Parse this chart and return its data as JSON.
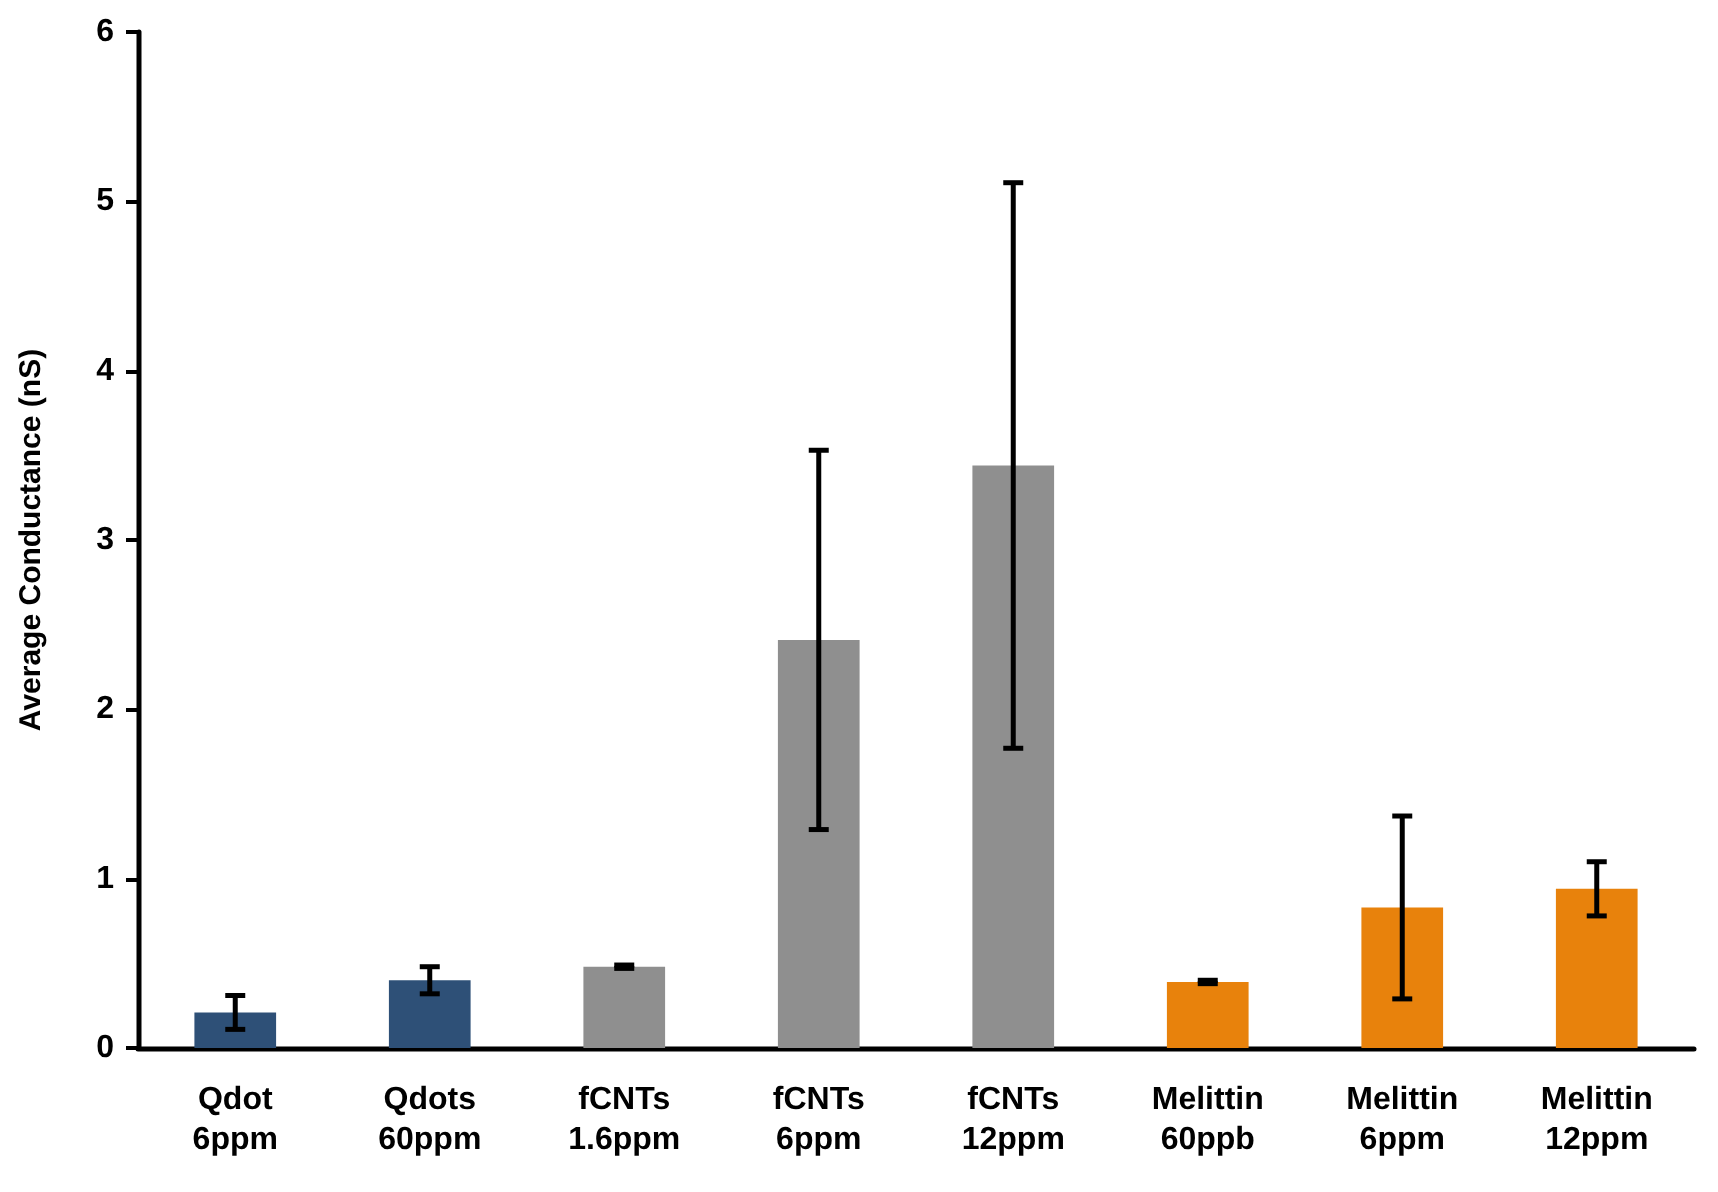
{
  "chart_data": {
    "type": "bar",
    "ylabel": "Average Conductance (nS)",
    "categories": [
      "Qdot\n6ppm",
      "Qdots\n60ppm",
      "fCNTs\n1.6ppm",
      "fCNTs\n6ppm",
      "fCNTs\n12ppm",
      "Melittin\n60ppb",
      "Melittin\n6ppm",
      "Melittin\n12ppm"
    ],
    "values": [
      0.21,
      0.4,
      0.48,
      2.41,
      3.44,
      0.39,
      0.83,
      0.94
    ],
    "errors": [
      0.1,
      0.08,
      0.01,
      1.12,
      1.67,
      0.01,
      0.54,
      0.16
    ],
    "colors": [
      "#2e5077",
      "#2e5077",
      "#8f8f8f",
      "#8f8f8f",
      "#8f8f8f",
      "#e8820c",
      "#e8820c",
      "#e8820c"
    ],
    "ylim": [
      0,
      6
    ],
    "yticks": [
      0,
      1,
      2,
      3,
      4,
      5,
      6
    ],
    "grid": false
  }
}
